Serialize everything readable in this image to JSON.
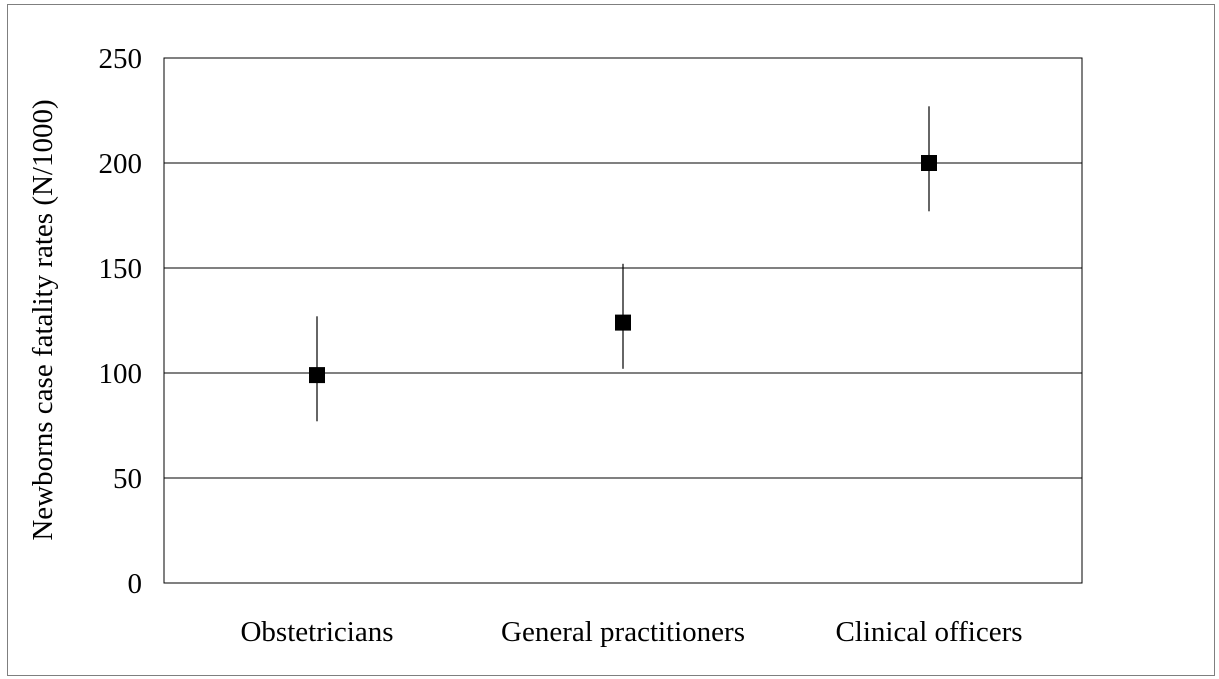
{
  "chart_data": {
    "type": "scatter",
    "title": "",
    "xlabel": "",
    "ylabel": "Newborns case fatality rates (N/1000)",
    "categories": [
      "Obstetricians",
      "General practitioners",
      "Clinical officers"
    ],
    "series": [
      {
        "values": [
          99,
          124,
          200
        ],
        "error_low": [
          77,
          102,
          177
        ],
        "error_high": [
          127,
          152,
          227
        ]
      }
    ],
    "ylim": [
      0,
      250
    ],
    "yticks": [
      0,
      50,
      100,
      150,
      200,
      250
    ],
    "grid": true,
    "legend": "none",
    "colors": {
      "marker": "#000000",
      "grid": "#000000",
      "frame": "#7f7f7f"
    }
  }
}
